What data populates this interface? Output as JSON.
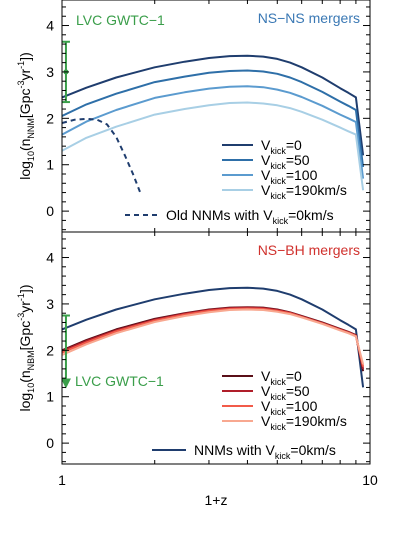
{
  "x_axis": {
    "label": "1+z",
    "scale": "log",
    "range": [
      1,
      10
    ],
    "tick_labels": [
      "1",
      "10"
    ]
  },
  "colors": {
    "navy": "#1f3d6e",
    "blue_1": "#2e6fa8",
    "blue_2": "#5b9bcf",
    "blue_3": "#a8cfe5",
    "red_1": "#5a0f18",
    "red_2": "#b01e2a",
    "red_3": "#f25b4a",
    "red_4": "#f8a890",
    "ns_ns_title": "#3a78b4",
    "ns_bh_title": "#d0312d",
    "lvc": "#3a9e4a"
  },
  "chart_data": [
    {
      "type": "line",
      "title": "NS−NS mergers",
      "ylabel": "log₁₀(n_NNM[Gpc⁻³yr⁻¹])",
      "ylabel_parts": {
        "pre": "log",
        "pre_sub": "10",
        "open": "(n",
        "n_sub": "NNM",
        "mid": "[Gpc",
        "sup1": "-3",
        "yr": "yr",
        "sup2": "-1",
        "close": "])"
      },
      "ylim": [
        -0.45,
        4.55
      ],
      "yticks": [
        0,
        1,
        2,
        3,
        4
      ],
      "ytick_labels": [
        "0",
        "1",
        "2",
        "3",
        "4"
      ],
      "series": [
        {
          "legend": {
            "main": "V",
            "sub": "kick",
            "value": "=0"
          },
          "color": "navy",
          "style": "solid",
          "x": [
            1.0,
            1.2,
            1.5,
            2.0,
            2.5,
            3.0,
            3.5,
            4.0,
            4.5,
            5.0,
            5.5,
            6.0,
            7.0,
            8.0,
            8.5,
            9.0,
            9.5
          ],
          "y": [
            2.45,
            2.66,
            2.88,
            3.1,
            3.22,
            3.3,
            3.34,
            3.35,
            3.33,
            3.28,
            3.2,
            3.1,
            2.88,
            2.65,
            2.55,
            2.45,
            1.2
          ]
        },
        {
          "legend": {
            "main": "V",
            "sub": "kick",
            "value": "=50"
          },
          "color": "blue_1",
          "style": "solid",
          "x": [
            1.0,
            1.2,
            1.5,
            2.0,
            2.5,
            3.0,
            3.5,
            4.0,
            4.5,
            5.0,
            5.5,
            6.0,
            7.0,
            8.0,
            8.5,
            9.0,
            9.5
          ],
          "y": [
            2.05,
            2.3,
            2.53,
            2.78,
            2.9,
            2.98,
            3.02,
            3.03,
            3.01,
            2.96,
            2.88,
            2.78,
            2.57,
            2.36,
            2.27,
            2.18,
            0.95
          ]
        },
        {
          "legend": {
            "main": "V",
            "sub": "kick",
            "value": "=100"
          },
          "color": "blue_2",
          "style": "solid",
          "x": [
            1.0,
            1.2,
            1.5,
            2.0,
            2.5,
            3.0,
            3.5,
            4.0,
            4.5,
            5.0,
            5.5,
            6.0,
            7.0,
            8.0,
            8.5,
            9.0,
            9.5
          ],
          "y": [
            1.65,
            1.93,
            2.18,
            2.44,
            2.56,
            2.64,
            2.68,
            2.69,
            2.67,
            2.62,
            2.55,
            2.46,
            2.27,
            2.08,
            2.0,
            1.92,
            0.7
          ]
        },
        {
          "legend": {
            "main": "V",
            "sub": "kick",
            "value": "=190km/s"
          },
          "color": "blue_3",
          "style": "solid",
          "x": [
            1.0,
            1.2,
            1.5,
            2.0,
            2.5,
            3.0,
            3.5,
            4.0,
            4.5,
            5.0,
            5.5,
            6.0,
            7.0,
            8.0,
            8.5,
            9.0,
            9.5
          ],
          "y": [
            1.3,
            1.58,
            1.82,
            2.08,
            2.2,
            2.28,
            2.33,
            2.34,
            2.32,
            2.28,
            2.22,
            2.14,
            1.97,
            1.8,
            1.72,
            1.65,
            0.45
          ]
        },
        {
          "legend": {
            "main": "Old NNMs with V",
            "sub": "kick",
            "value": "=0km/s"
          },
          "color": "navy",
          "style": "dashed",
          "x": [
            1.0,
            1.1,
            1.2,
            1.3,
            1.4,
            1.5,
            1.6,
            1.7,
            1.8
          ],
          "y": [
            1.9,
            1.97,
            1.99,
            1.97,
            1.87,
            1.6,
            1.2,
            0.8,
            0.38
          ]
        }
      ],
      "annotation": {
        "text": "LVC GWTC−1",
        "errorbar": {
          "x": 1.03,
          "y": 3.0,
          "ylow": 2.35,
          "yhigh": 3.65
        }
      }
    },
    {
      "type": "line",
      "title": "NS−BH mergers",
      "ylabel": "log₁₀(n_NBM[Gpc⁻³yr⁻¹])",
      "ylabel_parts": {
        "pre": "log",
        "pre_sub": "10",
        "open": "(n",
        "n_sub": "NBM",
        "mid": "[Gpc",
        "sup1": "-3",
        "yr": "yr",
        "sup2": "-1",
        "close": "])"
      },
      "ylim": [
        -0.45,
        4.55
      ],
      "yticks": [
        0,
        1,
        2,
        3,
        4
      ],
      "ytick_labels": [
        "0",
        "1",
        "2",
        "3",
        "4"
      ],
      "series": [
        {
          "legend": {
            "main": "NNMs with V",
            "sub": "kick",
            "value": "=0km/s"
          },
          "color": "navy",
          "style": "solid",
          "x": [
            1.0,
            1.2,
            1.5,
            2.0,
            2.5,
            3.0,
            3.5,
            4.0,
            4.5,
            5.0,
            5.5,
            6.0,
            7.0,
            8.0,
            8.5,
            9.0,
            9.5
          ],
          "y": [
            2.45,
            2.66,
            2.88,
            3.1,
            3.22,
            3.3,
            3.34,
            3.35,
            3.33,
            3.28,
            3.2,
            3.1,
            2.88,
            2.65,
            2.55,
            2.45,
            1.2
          ]
        },
        {
          "legend": {
            "main": "V",
            "sub": "kick",
            "value": "=0"
          },
          "color": "red_1",
          "style": "solid",
          "x": [
            1.0,
            1.2,
            1.5,
            2.0,
            2.5,
            3.0,
            3.5,
            4.0,
            4.5,
            5.0,
            5.5,
            6.0,
            7.0,
            8.0,
            8.5,
            9.0,
            9.5
          ],
          "y": [
            2.0,
            2.22,
            2.45,
            2.68,
            2.8,
            2.88,
            2.92,
            2.93,
            2.92,
            2.88,
            2.82,
            2.74,
            2.6,
            2.46,
            2.4,
            2.33,
            1.55
          ]
        },
        {
          "legend": {
            "main": "V",
            "sub": "kick",
            "value": "=50"
          },
          "color": "red_2",
          "style": "solid",
          "x": [
            1.0,
            1.2,
            1.5,
            2.0,
            2.5,
            3.0,
            3.5,
            4.0,
            4.5,
            5.0,
            5.5,
            6.0,
            7.0,
            8.0,
            8.5,
            9.0,
            9.5
          ],
          "y": [
            1.98,
            2.2,
            2.43,
            2.66,
            2.79,
            2.87,
            2.91,
            2.92,
            2.91,
            2.87,
            2.81,
            2.73,
            2.59,
            2.45,
            2.39,
            2.32,
            1.6
          ]
        },
        {
          "legend": {
            "main": "V",
            "sub": "kick",
            "value": "=100"
          },
          "color": "red_3",
          "style": "solid",
          "x": [
            1.0,
            1.2,
            1.5,
            2.0,
            2.5,
            3.0,
            3.5,
            4.0,
            4.5,
            5.0,
            5.5,
            6.0,
            7.0,
            8.0,
            8.5,
            9.0,
            9.5
          ],
          "y": [
            1.95,
            2.17,
            2.41,
            2.64,
            2.77,
            2.85,
            2.89,
            2.9,
            2.89,
            2.85,
            2.8,
            2.72,
            2.58,
            2.44,
            2.38,
            2.31,
            1.65
          ]
        },
        {
          "legend": {
            "main": "V",
            "sub": "kick",
            "value": "=190km/s"
          },
          "color": "red_4",
          "style": "solid",
          "x": [
            1.0,
            1.2,
            1.5,
            2.0,
            2.5,
            3.0,
            3.5,
            4.0,
            4.5,
            5.0,
            5.5,
            6.0,
            7.0,
            8.0,
            8.5,
            9.0,
            9.5
          ],
          "y": [
            1.9,
            2.13,
            2.37,
            2.61,
            2.74,
            2.82,
            2.87,
            2.88,
            2.87,
            2.83,
            2.78,
            2.71,
            2.57,
            2.43,
            2.37,
            2.3,
            1.7
          ]
        }
      ],
      "annotation": {
        "text": "LVC GWTC−1",
        "errorbar": {
          "x": 1.03,
          "ylow": 1.35,
          "yhigh": 2.75,
          "upper_limit": true
        }
      }
    }
  ]
}
